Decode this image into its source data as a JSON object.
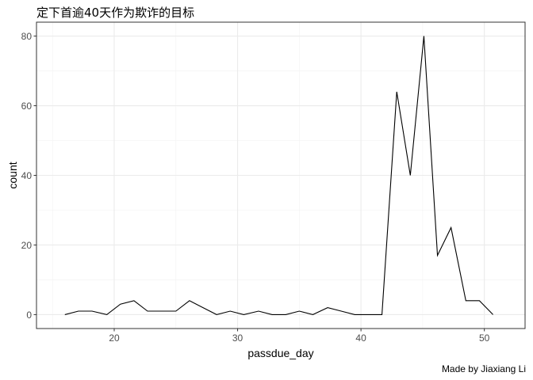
{
  "chart_data": {
    "type": "line",
    "title": "定下首逾40天作为欺诈的目标",
    "xlabel": "passdue_day",
    "ylabel": "count",
    "caption": "Made by Jiaxiang Li",
    "xlim": [
      13.7,
      53.3
    ],
    "ylim": [
      -4,
      84
    ],
    "x_ticks": [
      20,
      30,
      40,
      50
    ],
    "y_ticks": [
      0,
      20,
      40,
      60,
      80
    ],
    "x_minor": [
      15,
      25,
      35,
      45
    ],
    "y_minor": [
      10,
      30,
      50,
      70
    ],
    "grid": true,
    "line_color": "#000000",
    "series": [
      {
        "x": [
          16,
          17.1,
          18.2,
          19.4,
          20.5,
          21.6,
          22.7,
          23.8,
          25,
          26.1,
          27.2,
          28.3,
          29.4,
          30.5,
          31.7,
          32.8,
          33.9,
          35,
          36.1,
          37.3,
          38.4,
          39.5,
          40.6,
          41.7,
          42.9,
          44,
          45.1,
          46.2,
          47.3,
          48.5,
          49.6,
          50.7
        ],
        "y": [
          0,
          1,
          1,
          0,
          3,
          4,
          1,
          1,
          1,
          4,
          2,
          0,
          1,
          0,
          1,
          0,
          0,
          1,
          0,
          2,
          1,
          0,
          0,
          0,
          64,
          40,
          80,
          17,
          25,
          4,
          4,
          0
        ]
      }
    ]
  }
}
